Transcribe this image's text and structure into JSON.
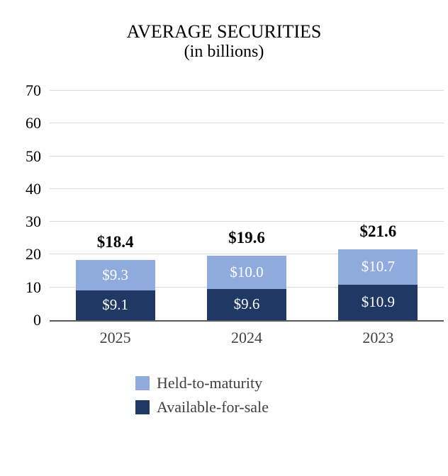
{
  "title": "AVERAGE SECURITIES",
  "subtitle": "(in billions)",
  "chart_data": {
    "type": "bar",
    "stacked": true,
    "title": "AVERAGE SECURITIES",
    "subtitle": "(in billions)",
    "categories": [
      "2025",
      "2024",
      "2023"
    ],
    "series": [
      {
        "name": "Available-for-sale",
        "color": "#1F3864",
        "values": [
          9.1,
          9.6,
          10.9
        ],
        "labels": [
          "$9.1",
          "$9.6",
          "$10.9"
        ]
      },
      {
        "name": "Held-to-maturity",
        "color": "#8FAADC",
        "values": [
          9.3,
          10.0,
          10.7
        ],
        "labels": [
          "$9.3",
          "$10.0",
          "$10.7"
        ]
      }
    ],
    "totals": [
      18.4,
      19.6,
      21.6
    ],
    "total_labels": [
      "$18.4",
      "$19.6",
      "$21.6"
    ],
    "ylim": [
      0,
      70
    ],
    "yticks": [
      0,
      10,
      20,
      30,
      40,
      50,
      60,
      70
    ],
    "grid": true,
    "legend_position": "bottom",
    "legend": [
      {
        "label": "Held-to-maturity",
        "color": "#8FAADC"
      },
      {
        "label": "Available-for-sale",
        "color": "#1F3864"
      }
    ],
    "grid_color": "#d9d9d9",
    "axis_color": "#595959"
  }
}
